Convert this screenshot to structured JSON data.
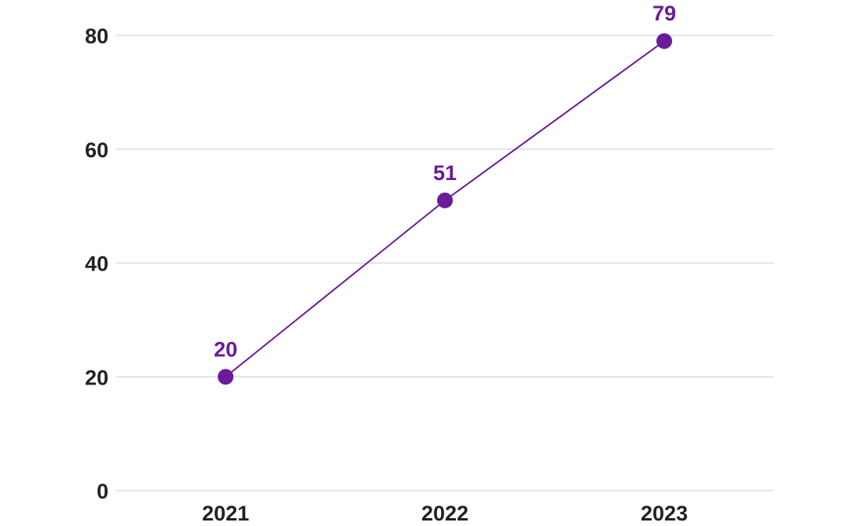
{
  "chart_data": {
    "type": "line",
    "categories": [
      "2021",
      "2022",
      "2023"
    ],
    "series": [
      {
        "values": [
          20,
          51,
          79
        ],
        "color": "#6a1b9a"
      }
    ],
    "title": "",
    "xlabel": "",
    "ylabel": "",
    "ylim": [
      0,
      80
    ],
    "y_ticks": [
      "0",
      "20",
      "40",
      "60",
      "80"
    ],
    "grid": true,
    "data_labels": [
      "20",
      "51",
      "79"
    ]
  }
}
